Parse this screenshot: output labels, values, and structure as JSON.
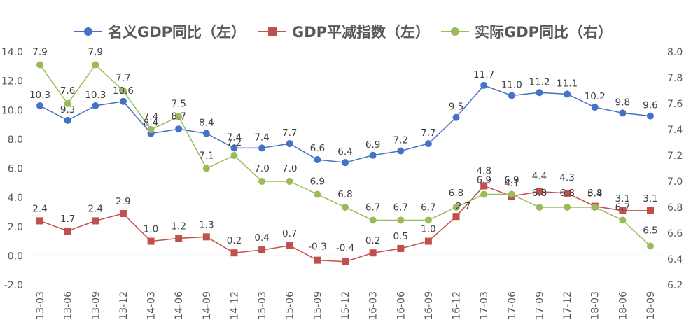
{
  "chart_data": {
    "type": "line",
    "categories": [
      "13-03",
      "13-06",
      "13-09",
      "13-12",
      "14-03",
      "14-06",
      "14-09",
      "14-12",
      "15-03",
      "15-06",
      "15-09",
      "15-12",
      "16-03",
      "16-06",
      "16-09",
      "16-12",
      "17-03",
      "17-06",
      "17-09",
      "17-12",
      "18-03",
      "18-06",
      "18-09"
    ],
    "series": [
      {
        "name": "名义GDP同比（左）",
        "axis": "left",
        "color": "#4472C4",
        "marker": "circle",
        "values": [
          10.3,
          9.3,
          10.3,
          10.6,
          8.4,
          8.7,
          8.4,
          7.4,
          7.4,
          7.7,
          6.6,
          6.4,
          6.9,
          7.2,
          7.7,
          9.5,
          11.7,
          11.0,
          11.2,
          11.1,
          10.2,
          9.8,
          9.6
        ],
        "labels": [
          "10.3",
          "9.3",
          "10.3",
          "10.6",
          "8.4",
          "8.7",
          "8.4",
          "7.4",
          "7.4",
          "7.7",
          "6.6",
          "6.4",
          "6.9",
          "7.2",
          "7.7",
          "9.5",
          "11.7",
          "11.0",
          "11.2",
          "11.1",
          "10.2",
          "9.8",
          "9.6"
        ]
      },
      {
        "name": "GDP平减指数（左）",
        "axis": "left",
        "color": "#C0504D",
        "marker": "square",
        "values": [
          2.4,
          1.7,
          2.4,
          2.9,
          1.0,
          1.2,
          1.3,
          0.2,
          0.4,
          0.7,
          -0.3,
          -0.4,
          0.2,
          0.5,
          1.0,
          2.7,
          4.8,
          4.1,
          4.4,
          4.3,
          3.4,
          3.1,
          3.1
        ],
        "labels": [
          "2.4",
          "1.7",
          "2.4",
          "2.9",
          "1.0",
          "1.2",
          "1.3",
          "0.2",
          "0.4",
          "0.7",
          "-0.3",
          "-0.4",
          "0.2",
          "0.5",
          "1.0",
          "2.7",
          "4.8",
          "4.1",
          "4.4",
          "4.3",
          "3.4",
          "3.1",
          "3.1"
        ]
      },
      {
        "name": "实际GDP同比（右）",
        "axis": "right",
        "color": "#9BBB59",
        "marker": "circle",
        "values": [
          7.9,
          7.6,
          7.9,
          7.7,
          7.4,
          7.5,
          7.1,
          7.2,
          7.0,
          7.0,
          6.9,
          6.8,
          6.7,
          6.7,
          6.7,
          6.8,
          6.9,
          6.9,
          6.8,
          6.8,
          6.8,
          6.7,
          6.5
        ],
        "labels": [
          "7.9",
          "7.6",
          "7.9",
          "7.7",
          "7.4",
          "7.5",
          "7.1",
          "7.2",
          "7.0",
          "7.0",
          "6.9",
          "6.8",
          "6.7",
          "6.7",
          "6.7",
          "6.8",
          "6.9",
          "6.9",
          "6.8",
          "6.8",
          "6.8",
          "6.7",
          "6.5"
        ]
      }
    ],
    "left_axis": {
      "min": -2.0,
      "max": 14.0,
      "step": 2.0,
      "ticks": [
        "-2.0",
        "0.0",
        "2.0",
        "4.0",
        "6.0",
        "8.0",
        "10.0",
        "12.0",
        "14.0"
      ]
    },
    "right_axis": {
      "min": 6.2,
      "max": 8.0,
      "step": 0.2,
      "ticks": [
        "6.2",
        "6.4",
        "6.6",
        "6.8",
        "7.0",
        "7.2",
        "7.4",
        "7.6",
        "7.8",
        "8.0"
      ]
    },
    "legend_position": "top",
    "grid": false
  }
}
